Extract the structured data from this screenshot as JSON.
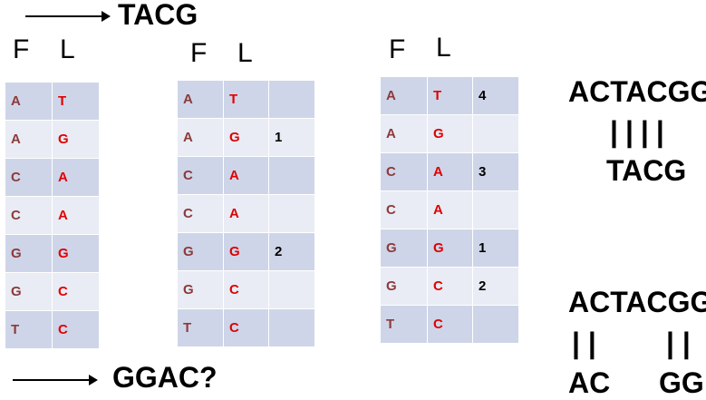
{
  "top_arrow_label": "TACG",
  "bottom_arrow_label": "GGAC?",
  "tables": [
    {
      "headers": {
        "f": "F",
        "l": "L"
      },
      "rows": [
        {
          "f": "A",
          "l": "T"
        },
        {
          "f": "A",
          "l": "G"
        },
        {
          "f": "C",
          "l": "A"
        },
        {
          "f": "C",
          "l": "A"
        },
        {
          "f": "G",
          "l": "G"
        },
        {
          "f": "G",
          "l": "C"
        },
        {
          "f": "T",
          "l": "C"
        }
      ]
    },
    {
      "headers": {
        "f": "F",
        "l": "L"
      },
      "rows": [
        {
          "f": "A",
          "l": "T",
          "n": ""
        },
        {
          "f": "A",
          "l": "G",
          "n": "1"
        },
        {
          "f": "C",
          "l": "A",
          "n": ""
        },
        {
          "f": "C",
          "l": "A",
          "n": ""
        },
        {
          "f": "G",
          "l": "G",
          "n": "2"
        },
        {
          "f": "G",
          "l": "C",
          "n": ""
        },
        {
          "f": "T",
          "l": "C",
          "n": ""
        }
      ]
    },
    {
      "headers": {
        "f": "F",
        "l": "L"
      },
      "rows": [
        {
          "f": "A",
          "l": "T",
          "n": "4"
        },
        {
          "f": "A",
          "l": "G",
          "n": ""
        },
        {
          "f": "C",
          "l": "A",
          "n": "3"
        },
        {
          "f": "C",
          "l": "A",
          "n": ""
        },
        {
          "f": "G",
          "l": "G",
          "n": "1"
        },
        {
          "f": "G",
          "l": "C",
          "n": "2"
        },
        {
          "f": "T",
          "l": "C",
          "n": ""
        }
      ]
    }
  ],
  "alignment_top": {
    "reference": "ACTACGG",
    "bars": "||||",
    "query": "TACG"
  },
  "alignment_bottom": {
    "reference": "ACTACGG",
    "bars_left": "| |",
    "bars_right": "| |",
    "query_left": "AC",
    "query_right": "GG"
  }
}
